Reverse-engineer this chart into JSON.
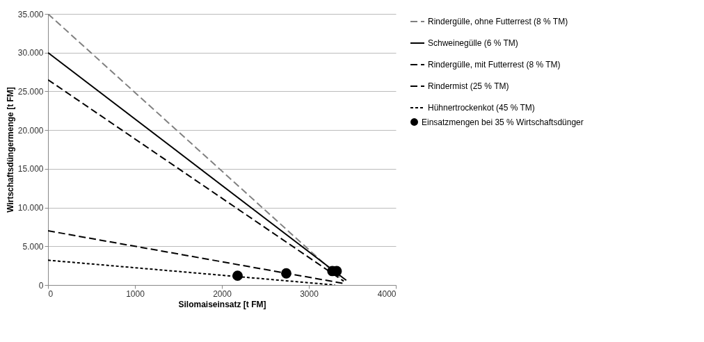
{
  "chart_data": {
    "type": "line",
    "xlabel": "Silomaiseinsatz [t FM]",
    "ylabel": "Wirtschaftsdüngermenge [t FM]",
    "xlim": [
      0,
      4000
    ],
    "xticks": [
      0,
      1000,
      2000,
      3000,
      4000
    ],
    "ylim": [
      0,
      35000
    ],
    "yticks": [
      {
        "value": 0,
        "label": "0"
      },
      {
        "value": 5000,
        "label": "5.000"
      },
      {
        "value": 10000,
        "label": "10.000"
      },
      {
        "value": 15000,
        "label": "15.000"
      },
      {
        "value": 20000,
        "label": "20.000"
      },
      {
        "value": 25000,
        "label": "25.000"
      },
      {
        "value": 30000,
        "label": "30.000"
      },
      {
        "value": 35000,
        "label": "35.000"
      }
    ],
    "grid": "y",
    "legend": "right",
    "series": [
      {
        "name": "Rindergülle, ohne Futterrest (8 % TM)",
        "color": "#808080",
        "line_style": "dashed",
        "x": [
          0,
          3400
        ],
        "values": [
          35000,
          500
        ]
      },
      {
        "name": "Schweinegülle (6 % TM)",
        "color": "#000000",
        "line_style": "solid",
        "x": [
          0,
          3430
        ],
        "values": [
          30000,
          600
        ]
      },
      {
        "name": "Rindergülle, mit Futterrest (8 % TM)",
        "color": "#000000",
        "line_style": "dashed",
        "x": [
          0,
          3400
        ],
        "values": [
          26500,
          500
        ]
      },
      {
        "name": "Rindermist (25 % TM)",
        "color": "#000000",
        "line_style": "dashed",
        "x": [
          0,
          3400
        ],
        "values": [
          7000,
          200
        ]
      },
      {
        "name": "Hühnertrockenkot (45 % TM)",
        "color": "#000000",
        "line_style": "dotted",
        "x": [
          0,
          3300
        ],
        "values": [
          3200,
          0
        ]
      },
      {
        "name": "Einsatzmengen bei 35 % Wirtschaftsdünger",
        "type": "scatter",
        "marker": "circle",
        "color": "#000000",
        "x": [
          2180,
          2740,
          3270,
          3320
        ],
        "values": [
          1200,
          1500,
          1800,
          1800
        ]
      }
    ]
  }
}
